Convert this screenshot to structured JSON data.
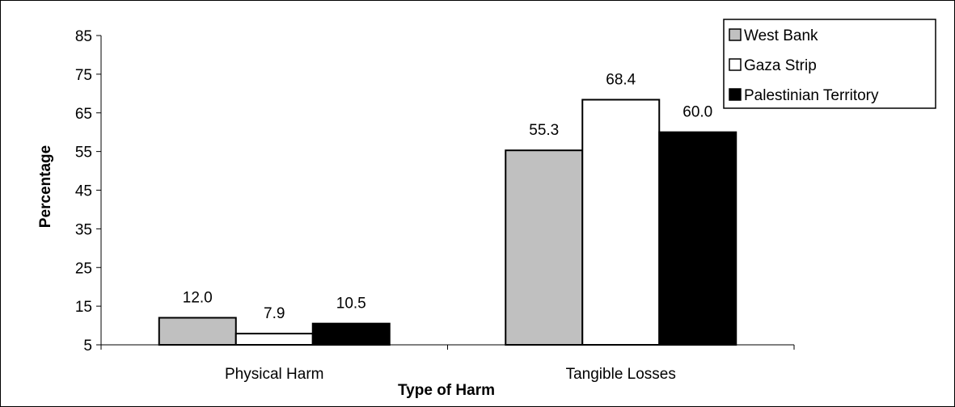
{
  "chart_data": {
    "type": "bar",
    "categories": [
      "Physical Harm",
      "Tangible Losses"
    ],
    "series": [
      {
        "name": "West Bank",
        "values": [
          12.0,
          55.3
        ],
        "color": "#c0c0c0",
        "labels": [
          "12.0",
          "55.3"
        ]
      },
      {
        "name": "Gaza Strip",
        "values": [
          7.9,
          68.4
        ],
        "color": "#ffffff",
        "labels": [
          "7.9",
          "68.4"
        ]
      },
      {
        "name": "Palestinian Territory",
        "values": [
          10.5,
          60.0
        ],
        "color": "#000000",
        "labels": [
          "10.5",
          "60.0"
        ]
      }
    ],
    "xlabel": "Type of Harm",
    "ylabel": "Percentage",
    "ylim": [
      5,
      85
    ],
    "yticks": [
      5,
      15,
      25,
      35,
      45,
      55,
      65,
      75,
      85
    ],
    "legend_position": "top-right",
    "grid": false
  }
}
